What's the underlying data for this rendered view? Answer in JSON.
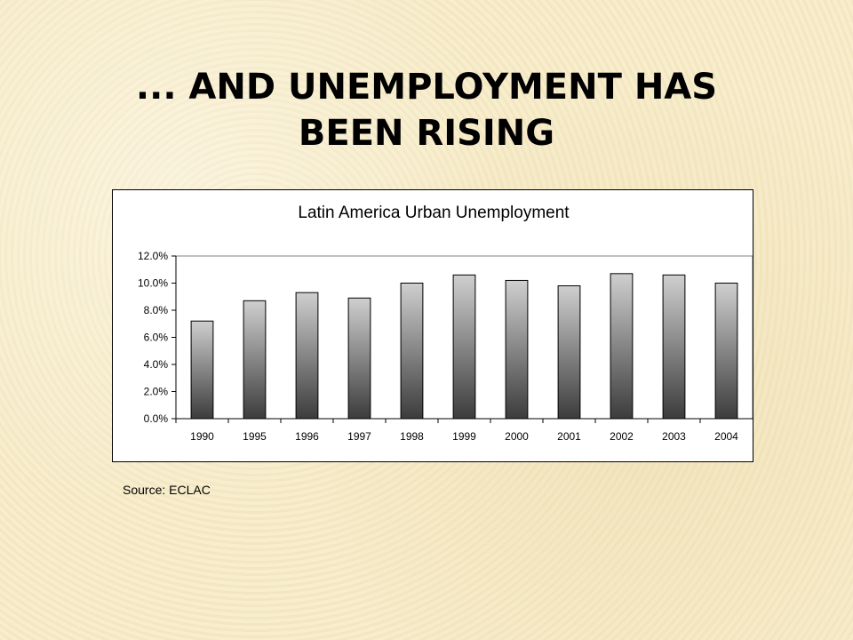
{
  "slide": {
    "title_line1": "... AND UNEMPLOYMENT HAS",
    "title_line2": "BEEN RISING",
    "source": "Source: ECLAC"
  },
  "chart_data": {
    "type": "bar",
    "title": "Latin America Urban Unemployment",
    "categories": [
      "1990",
      "1995",
      "1996",
      "1997",
      "1998",
      "1999",
      "2000",
      "2001",
      "2002",
      "2003",
      "2004"
    ],
    "values": [
      7.2,
      8.7,
      9.3,
      8.9,
      10.0,
      10.6,
      10.2,
      9.8,
      10.7,
      10.6,
      10.0
    ],
    "ylim": [
      0,
      12
    ],
    "yticks": [
      0,
      2,
      4,
      6,
      8,
      10,
      12
    ],
    "ytick_labels": [
      "0.0%",
      "2.0%",
      "4.0%",
      "6.0%",
      "8.0%",
      "10.0%",
      "12.0%"
    ],
    "xlabel": "",
    "ylabel": "",
    "grid": false,
    "legend": "none",
    "bar_colors": {
      "top": "#cfcfcf",
      "bottom": "#3c3c3c",
      "border": "#000000"
    }
  }
}
